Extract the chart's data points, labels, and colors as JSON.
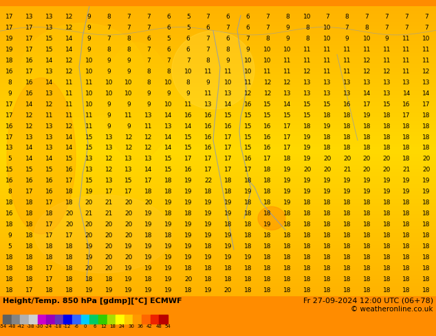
{
  "title_left": "Height/Temp. 850 hPa [gdmp][°C] ECMWF",
  "title_right": "Fr 27-09-2024 12:00 UTC (06+78)",
  "copyright": "© weatheronline.co.uk",
  "colorbar_ticks": [
    "-54",
    "-48",
    "-42",
    "-38",
    "-30",
    "-24",
    "-18",
    "-12",
    "-6",
    "0",
    "6",
    "12",
    "18",
    "24",
    "30",
    "36",
    "42",
    "48",
    "54"
  ],
  "colorbar_colors": [
    "#606060",
    "#848484",
    "#b0b0b0",
    "#d0d0d0",
    "#cc00cc",
    "#9900bb",
    "#6633bb",
    "#0000ee",
    "#3366ff",
    "#00ccff",
    "#00cc66",
    "#33cc00",
    "#aadd00",
    "#ffff00",
    "#ffcc00",
    "#ff9900",
    "#ff6600",
    "#ee2200",
    "#bb0000"
  ],
  "top_bar_color": "#00bb00",
  "bottom_bar_color": "#ff8c00",
  "map_bg_base": "#ffaa00",
  "map_lighter": "#ffcc44",
  "map_yellow_patch": "#ffdd66",
  "contour_color": "#8899bb",
  "numbers_color": "#000000",
  "numbers_fontsize": 6.5,
  "grid_rows": 26,
  "grid_cols": 22,
  "numbers": [
    [
      17,
      13,
      13,
      12,
      9,
      8,
      7,
      7,
      6,
      5,
      7,
      6,
      6,
      7,
      8,
      10,
      7,
      8,
      7,
      7,
      7,
      7
    ],
    [
      17,
      17,
      13,
      12,
      9,
      7,
      7,
      7,
      6,
      5,
      6,
      7,
      6,
      7,
      9,
      8,
      10,
      7,
      8,
      7,
      7,
      7
    ],
    [
      19,
      17,
      15,
      14,
      9,
      7,
      8,
      6,
      5,
      6,
      7,
      6,
      7,
      8,
      9,
      8,
      10,
      9,
      10,
      9,
      11,
      10
    ],
    [
      19,
      17,
      15,
      14,
      9,
      8,
      8,
      7,
      6,
      6,
      7,
      8,
      9,
      10,
      10,
      11,
      11,
      11,
      11,
      11,
      11,
      11
    ],
    [
      18,
      16,
      14,
      12,
      10,
      9,
      9,
      7,
      7,
      7,
      8,
      9,
      10,
      10,
      11,
      11,
      11,
      11,
      12,
      11,
      11,
      11
    ],
    [
      16,
      17,
      13,
      12,
      10,
      9,
      9,
      8,
      8,
      10,
      11,
      11,
      10,
      11,
      11,
      12,
      11,
      11,
      12,
      12,
      11,
      12
    ],
    [
      8,
      16,
      14,
      11,
      11,
      10,
      10,
      8,
      10,
      8,
      9,
      10,
      11,
      12,
      12,
      13,
      13,
      13,
      13,
      13,
      13,
      13
    ],
    [
      9,
      16,
      13,
      11,
      10,
      10,
      10,
      9,
      9,
      9,
      11,
      13,
      12,
      12,
      13,
      13,
      13,
      13,
      14,
      13,
      14,
      14
    ],
    [
      17,
      14,
      12,
      11,
      10,
      9,
      9,
      9,
      10,
      11,
      13,
      14,
      16,
      15,
      14,
      15,
      15,
      16,
      17,
      15,
      16,
      17
    ],
    [
      17,
      12,
      11,
      11,
      11,
      9,
      11,
      13,
      14,
      16,
      16,
      15,
      15,
      15,
      15,
      15,
      18,
      18,
      19,
      18,
      17,
      18
    ],
    [
      16,
      12,
      13,
      12,
      11,
      9,
      9,
      11,
      13,
      14,
      16,
      16,
      15,
      16,
      17,
      18,
      19,
      18,
      18,
      18,
      18,
      18
    ],
    [
      17,
      13,
      13,
      14,
      15,
      13,
      12,
      12,
      14,
      15,
      16,
      17,
      15,
      16,
      17,
      19,
      18,
      18,
      18,
      18,
      18,
      18
    ],
    [
      13,
      14,
      13,
      14,
      15,
      13,
      12,
      12,
      14,
      15,
      16,
      17,
      15,
      16,
      17,
      19,
      18,
      18,
      18,
      18,
      18,
      18
    ],
    [
      5,
      14,
      14,
      15,
      13,
      12,
      13,
      13,
      15,
      17,
      17,
      17,
      16,
      17,
      18,
      19,
      20,
      20,
      20,
      20,
      18,
      20
    ],
    [
      15,
      15,
      15,
      16,
      13,
      12,
      13,
      14,
      15,
      16,
      17,
      17,
      17,
      18,
      19,
      20,
      20,
      21,
      20,
      20,
      21,
      20
    ],
    [
      16,
      16,
      16,
      17,
      15,
      13,
      15,
      17,
      18,
      19,
      22,
      18,
      18,
      18,
      19,
      19,
      19,
      19,
      19,
      19,
      19,
      19
    ],
    [
      8,
      17,
      16,
      18,
      19,
      17,
      17,
      18,
      18,
      19,
      18,
      18,
      19,
      18,
      19,
      19,
      19,
      19,
      19,
      19,
      19,
      19
    ],
    [
      18,
      18,
      17,
      18,
      20,
      21,
      20,
      20,
      19,
      19,
      19,
      19,
      18,
      18,
      19,
      18,
      18,
      18,
      18,
      18,
      18,
      18
    ],
    [
      16,
      18,
      18,
      20,
      21,
      21,
      20,
      19,
      18,
      18,
      19,
      19,
      18,
      18,
      18,
      18,
      18,
      18,
      18,
      18,
      18,
      18
    ],
    [
      18,
      18,
      17,
      20,
      20,
      20,
      20,
      19,
      19,
      19,
      19,
      18,
      18,
      19,
      18,
      18,
      18,
      18,
      18,
      18,
      18,
      18
    ],
    [
      9,
      18,
      17,
      17,
      20,
      20,
      20,
      18,
      18,
      19,
      19,
      19,
      18,
      18,
      18,
      18,
      18,
      18,
      18,
      18,
      18,
      18
    ],
    [
      5,
      18,
      18,
      18,
      19,
      20,
      19,
      19,
      19,
      19,
      18,
      19,
      18,
      18,
      18,
      18,
      18,
      18,
      18,
      18,
      18,
      18
    ],
    [
      18,
      18,
      18,
      18,
      19,
      20,
      20,
      19,
      19,
      19,
      19,
      19,
      19,
      18,
      18,
      18,
      18,
      18,
      18,
      18,
      18,
      18
    ],
    [
      18,
      18,
      17,
      18,
      20,
      20,
      19,
      19,
      19,
      18,
      18,
      18,
      18,
      18,
      18,
      18,
      18,
      18,
      18,
      18,
      18,
      18
    ],
    [
      18,
      18,
      17,
      18,
      18,
      18,
      19,
      18,
      19,
      20,
      18,
      18,
      18,
      18,
      18,
      18,
      18,
      18,
      18,
      18,
      18,
      18
    ],
    [
      18,
      17,
      18,
      18,
      19,
      19,
      19,
      19,
      19,
      18,
      19,
      20,
      18,
      18,
      18,
      18,
      18,
      18,
      18,
      18,
      18,
      18
    ]
  ]
}
